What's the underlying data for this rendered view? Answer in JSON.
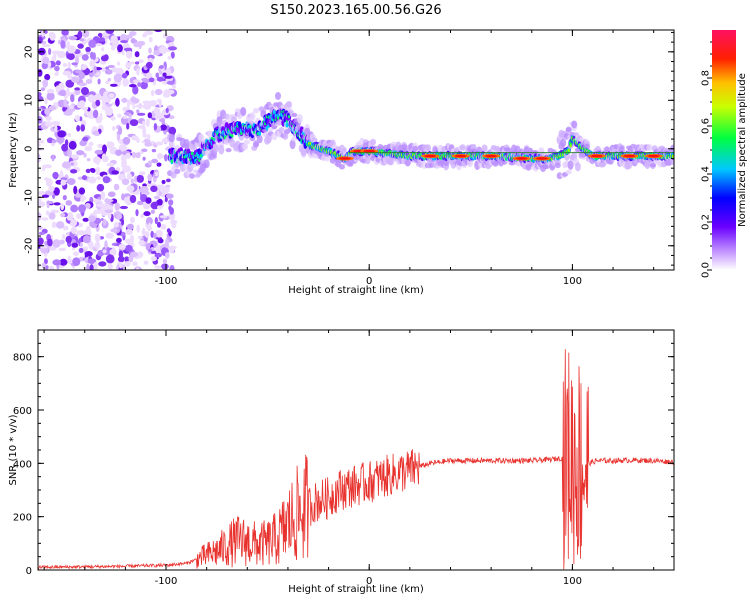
{
  "title": "S150.2023.165.00.56.G26",
  "chart_data": [
    {
      "type": "heatmap",
      "name": "spectrogram",
      "xlabel": "Height of straight line (km)",
      "ylabel": "Frequency (Hz)",
      "xlim": [
        -163,
        150
      ],
      "ylim": [
        -25,
        24.5
      ],
      "xticks": [
        -100,
        0,
        100
      ],
      "yticks": [
        -20,
        -10,
        0,
        10,
        20
      ],
      "grid": false,
      "colorbar": {
        "label": "Normalized spectral amplitude",
        "range": [
          0,
          1
        ],
        "ticks": [
          0.0,
          0.2,
          0.4,
          0.6,
          0.8
        ],
        "colors": [
          "#ffffff",
          "#8000ff",
          "#0000ff",
          "#00e0ff",
          "#00ff40",
          "#ffff00",
          "#ff8000",
          "#ff0000",
          "#ff0080"
        ]
      },
      "ridge": {
        "note_x": [
          -95,
          -85,
          -75,
          -65,
          -55,
          -45,
          -40,
          -30,
          -20,
          -12,
          -8,
          0,
          20,
          40,
          60,
          80,
          90,
          98,
          100,
          110,
          130,
          150
        ],
        "note_y": [
          -1.5,
          -2,
          3,
          4,
          4,
          7,
          6,
          1,
          -0.5,
          -2,
          -0.5,
          -0.5,
          -1.5,
          -1.5,
          -1.5,
          -2,
          -2,
          -0.5,
          2,
          -1.5,
          -1.5,
          -1.5
        ]
      }
    },
    {
      "type": "line",
      "name": "snr",
      "xlabel": "Height of straight line (km)",
      "ylabel": "SNR (10 * v/v)",
      "xlim": [
        -163,
        150
      ],
      "ylim": [
        0,
        900
      ],
      "xticks": [
        -100,
        0,
        100
      ],
      "yticks": [
        0,
        200,
        400,
        600,
        800
      ],
      "color": "#e8322e",
      "grid": false,
      "series": [
        {
          "x": [
            -163,
            -140,
            -120,
            -100,
            -90,
            -80,
            -75,
            -70,
            -65,
            -60,
            -55,
            -50,
            -45,
            -40,
            -35,
            -30,
            -25,
            -20,
            -15,
            -10,
            -5,
            0,
            10,
            20,
            30,
            40,
            60,
            80,
            90,
            95,
            98,
            100,
            102,
            104,
            106,
            108,
            112,
            120,
            130,
            140,
            150
          ],
          "y": [
            10,
            12,
            14,
            18,
            25,
            55,
            70,
            90,
            110,
            105,
            95,
            100,
            120,
            170,
            210,
            240,
            260,
            270,
            300,
            310,
            320,
            330,
            355,
            375,
            400,
            410,
            410,
            410,
            415,
            420,
            430,
            420,
            410,
            405,
            400,
            400,
            410,
            410,
            412,
            410,
            405
          ]
        }
      ]
    }
  ]
}
